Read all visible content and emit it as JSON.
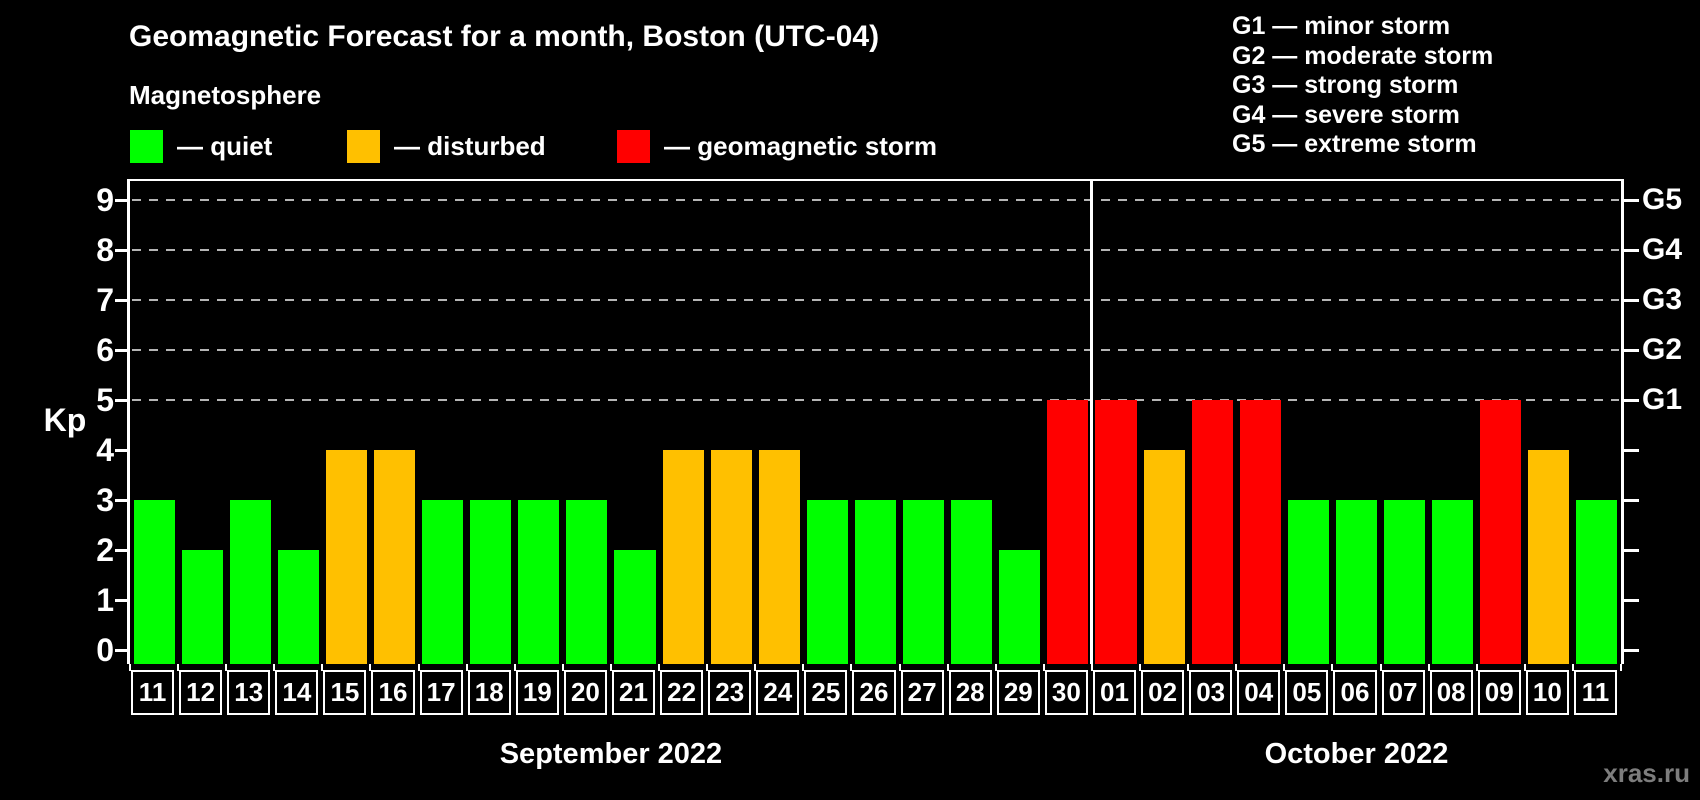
{
  "title": "Geomagnetic Forecast for a month, Boston (UTC-04)",
  "subtitle": "Magnetosphere",
  "legend": [
    {
      "status": "quiet",
      "label": "— quiet",
      "color": "#00ff00"
    },
    {
      "status": "disturbed",
      "label": "— disturbed",
      "color": "#ffc000"
    },
    {
      "status": "storm",
      "label": "— geomagnetic storm",
      "color": "#ff0000"
    }
  ],
  "g_scale_legend": [
    "G1 — minor storm",
    "G2 — moderate storm",
    "G3 — strong storm",
    "G4 — severe storm",
    "G5 — extreme storm"
  ],
  "watermark": "xras.ru",
  "chart_data": {
    "type": "bar",
    "ylabel": "Kp",
    "ylim": [
      0,
      9.4
    ],
    "yticks": [
      0,
      1,
      2,
      3,
      4,
      5,
      6,
      7,
      8,
      9
    ],
    "gridlines_at": [
      5,
      6,
      7,
      8,
      9
    ],
    "grid": "dashed horizontal at storm levels only",
    "right_axis_labels": [
      {
        "kp": 5,
        "label": "G1"
      },
      {
        "kp": 6,
        "label": "G2"
      },
      {
        "kp": 7,
        "label": "G3"
      },
      {
        "kp": 8,
        "label": "G4"
      },
      {
        "kp": 9,
        "label": "G5"
      }
    ],
    "status_colors": {
      "quiet": "#00ff00",
      "disturbed": "#ffc000",
      "storm": "#ff0000"
    },
    "months": [
      {
        "label": "September 2022",
        "days": 20
      },
      {
        "label": "October 2022",
        "days": 11
      }
    ],
    "days": [
      {
        "date": "11",
        "kp": 3,
        "status": "quiet"
      },
      {
        "date": "12",
        "kp": 2,
        "status": "quiet"
      },
      {
        "date": "13",
        "kp": 3,
        "status": "quiet"
      },
      {
        "date": "14",
        "kp": 2,
        "status": "quiet"
      },
      {
        "date": "15",
        "kp": 4,
        "status": "disturbed"
      },
      {
        "date": "16",
        "kp": 4,
        "status": "disturbed"
      },
      {
        "date": "17",
        "kp": 3,
        "status": "quiet"
      },
      {
        "date": "18",
        "kp": 3,
        "status": "quiet"
      },
      {
        "date": "19",
        "kp": 3,
        "status": "quiet"
      },
      {
        "date": "20",
        "kp": 3,
        "status": "quiet"
      },
      {
        "date": "21",
        "kp": 2,
        "status": "quiet"
      },
      {
        "date": "22",
        "kp": 4,
        "status": "disturbed"
      },
      {
        "date": "23",
        "kp": 4,
        "status": "disturbed"
      },
      {
        "date": "24",
        "kp": 4,
        "status": "disturbed"
      },
      {
        "date": "25",
        "kp": 3,
        "status": "quiet"
      },
      {
        "date": "26",
        "kp": 3,
        "status": "quiet"
      },
      {
        "date": "27",
        "kp": 3,
        "status": "quiet"
      },
      {
        "date": "28",
        "kp": 3,
        "status": "quiet"
      },
      {
        "date": "29",
        "kp": 2,
        "status": "quiet"
      },
      {
        "date": "30",
        "kp": 5,
        "status": "storm"
      },
      {
        "date": "01",
        "kp": 5,
        "status": "storm"
      },
      {
        "date": "02",
        "kp": 4,
        "status": "disturbed"
      },
      {
        "date": "03",
        "kp": 5,
        "status": "storm"
      },
      {
        "date": "04",
        "kp": 5,
        "status": "storm"
      },
      {
        "date": "05",
        "kp": 3,
        "status": "quiet"
      },
      {
        "date": "06",
        "kp": 3,
        "status": "quiet"
      },
      {
        "date": "07",
        "kp": 3,
        "status": "quiet"
      },
      {
        "date": "08",
        "kp": 3,
        "status": "quiet"
      },
      {
        "date": "09",
        "kp": 5,
        "status": "storm"
      },
      {
        "date": "10",
        "kp": 4,
        "status": "disturbed"
      },
      {
        "date": "11",
        "kp": 3,
        "status": "quiet"
      }
    ]
  }
}
